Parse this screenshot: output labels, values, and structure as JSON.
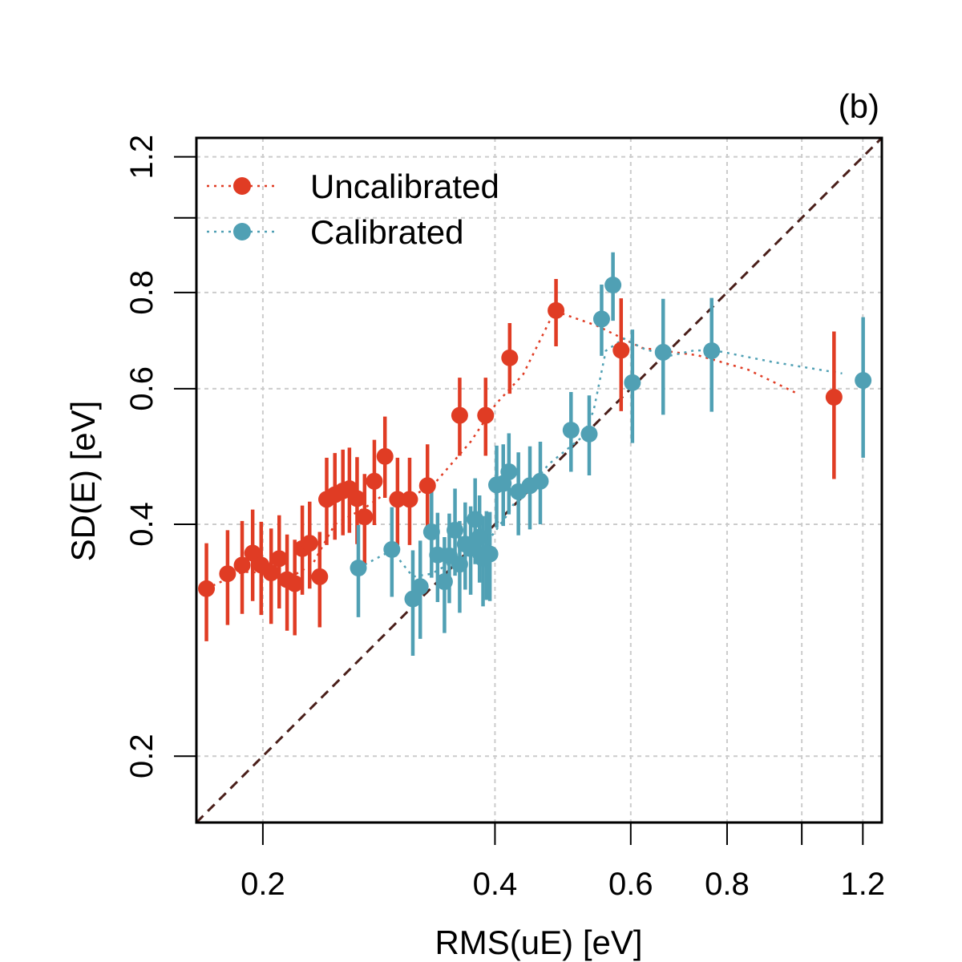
{
  "chart_data": {
    "type": "scatter",
    "panel_label": "(b)",
    "xlabel": "RMS(uE) [eV]",
    "ylabel": "SD(E) [eV]",
    "xscale": "log",
    "yscale": "log",
    "xlim": [
      0.164,
      1.27
    ],
    "ylim": [
      0.164,
      1.27
    ],
    "xticks": [
      0.2,
      0.4,
      0.6,
      0.8,
      1.0,
      1.2
    ],
    "xtick_labels": [
      "0.2",
      "0.4",
      "0.6",
      "0.8",
      "",
      "1.2"
    ],
    "yticks": [
      0.2,
      0.4,
      0.6,
      0.8,
      1.0,
      1.2
    ],
    "ytick_labels": [
      "0.2",
      "0.4",
      "0.6",
      "0.8",
      "",
      "1.2"
    ],
    "grid": true,
    "reference_line": "identity",
    "legend_position": "top-left",
    "legend": [
      {
        "label": "Uncalibrated",
        "color": "#E03C24"
      },
      {
        "label": "Calibrated",
        "color": "#50A0B4"
      }
    ],
    "series": [
      {
        "name": "Uncalibrated",
        "color": "#E03C24",
        "points": [
          {
            "x": 0.169,
            "y": 0.33,
            "lo": 0.282,
            "hi": 0.378
          },
          {
            "x": 0.18,
            "y": 0.345,
            "lo": 0.296,
            "hi": 0.393
          },
          {
            "x": 0.188,
            "y": 0.354,
            "lo": 0.306,
            "hi": 0.404
          },
          {
            "x": 0.194,
            "y": 0.367,
            "lo": 0.318,
            "hi": 0.418
          },
          {
            "x": 0.199,
            "y": 0.354,
            "lo": 0.305,
            "hi": 0.403
          },
          {
            "x": 0.205,
            "y": 0.346,
            "lo": 0.297,
            "hi": 0.395
          },
          {
            "x": 0.21,
            "y": 0.361,
            "lo": 0.311,
            "hi": 0.411
          },
          {
            "x": 0.215,
            "y": 0.339,
            "lo": 0.291,
            "hi": 0.388
          },
          {
            "x": 0.22,
            "y": 0.335,
            "lo": 0.287,
            "hi": 0.382
          },
          {
            "x": 0.225,
            "y": 0.372,
            "lo": 0.324,
            "hi": 0.423
          },
          {
            "x": 0.23,
            "y": 0.378,
            "lo": 0.33,
            "hi": 0.428
          },
          {
            "x": 0.237,
            "y": 0.342,
            "lo": 0.294,
            "hi": 0.391
          },
          {
            "x": 0.242,
            "y": 0.431,
            "lo": 0.376,
            "hi": 0.488
          },
          {
            "x": 0.248,
            "y": 0.437,
            "lo": 0.382,
            "hi": 0.495
          },
          {
            "x": 0.254,
            "y": 0.442,
            "lo": 0.387,
            "hi": 0.5
          },
          {
            "x": 0.259,
            "y": 0.445,
            "lo": 0.39,
            "hi": 0.503
          },
          {
            "x": 0.265,
            "y": 0.432,
            "lo": 0.377,
            "hi": 0.489
          },
          {
            "x": 0.271,
            "y": 0.409,
            "lo": 0.356,
            "hi": 0.465
          },
          {
            "x": 0.279,
            "y": 0.455,
            "lo": 0.399,
            "hi": 0.515
          },
          {
            "x": 0.288,
            "y": 0.49,
            "lo": 0.433,
            "hi": 0.552
          },
          {
            "x": 0.299,
            "y": 0.431,
            "lo": 0.376,
            "hi": 0.488
          },
          {
            "x": 0.31,
            "y": 0.431,
            "lo": 0.376,
            "hi": 0.488
          },
          {
            "x": 0.327,
            "y": 0.449,
            "lo": 0.394,
            "hi": 0.508
          },
          {
            "x": 0.36,
            "y": 0.554,
            "lo": 0.491,
            "hi": 0.62
          },
          {
            "x": 0.389,
            "y": 0.554,
            "lo": 0.491,
            "hi": 0.62
          },
          {
            "x": 0.418,
            "y": 0.658,
            "lo": 0.591,
            "hi": 0.73
          },
          {
            "x": 0.48,
            "y": 0.758,
            "lo": 0.681,
            "hi": 0.833
          },
          {
            "x": 0.583,
            "y": 0.673,
            "lo": 0.561,
            "hi": 0.786
          },
          {
            "x": 1.101,
            "y": 0.585,
            "lo": 0.458,
            "hi": 0.712
          }
        ]
      },
      {
        "name": "Calibrated",
        "color": "#50A0B4",
        "points": [
          {
            "x": 0.266,
            "y": 0.351,
            "lo": 0.303,
            "hi": 0.399
          },
          {
            "x": 0.294,
            "y": 0.371,
            "lo": 0.322,
            "hi": 0.421
          },
          {
            "x": 0.313,
            "y": 0.32,
            "lo": 0.27,
            "hi": 0.37
          },
          {
            "x": 0.32,
            "y": 0.332,
            "lo": 0.284,
            "hi": 0.381
          },
          {
            "x": 0.331,
            "y": 0.391,
            "lo": 0.341,
            "hi": 0.442
          },
          {
            "x": 0.337,
            "y": 0.365,
            "lo": 0.317,
            "hi": 0.414
          },
          {
            "x": 0.344,
            "y": 0.337,
            "lo": 0.289,
            "hi": 0.385
          },
          {
            "x": 0.349,
            "y": 0.364,
            "lo": 0.316,
            "hi": 0.413
          },
          {
            "x": 0.355,
            "y": 0.393,
            "lo": 0.343,
            "hi": 0.445
          },
          {
            "x": 0.36,
            "y": 0.355,
            "lo": 0.307,
            "hi": 0.404
          },
          {
            "x": 0.366,
            "y": 0.377,
            "lo": 0.329,
            "hi": 0.427
          },
          {
            "x": 0.372,
            "y": 0.372,
            "lo": 0.324,
            "hi": 0.422
          },
          {
            "x": 0.377,
            "y": 0.406,
            "lo": 0.355,
            "hi": 0.459
          },
          {
            "x": 0.382,
            "y": 0.385,
            "lo": 0.336,
            "hi": 0.436
          },
          {
            "x": 0.386,
            "y": 0.361,
            "lo": 0.313,
            "hi": 0.41
          },
          {
            "x": 0.39,
            "y": 0.367,
            "lo": 0.319,
            "hi": 0.416
          },
          {
            "x": 0.394,
            "y": 0.366,
            "lo": 0.318,
            "hi": 0.415
          },
          {
            "x": 0.402,
            "y": 0.45,
            "lo": 0.396,
            "hi": 0.506
          },
          {
            "x": 0.41,
            "y": 0.452,
            "lo": 0.398,
            "hi": 0.508
          },
          {
            "x": 0.417,
            "y": 0.468,
            "lo": 0.412,
            "hi": 0.525
          },
          {
            "x": 0.429,
            "y": 0.441,
            "lo": 0.387,
            "hi": 0.496
          },
          {
            "x": 0.444,
            "y": 0.449,
            "lo": 0.394,
            "hi": 0.505
          },
          {
            "x": 0.458,
            "y": 0.455,
            "lo": 0.4,
            "hi": 0.512
          },
          {
            "x": 0.502,
            "y": 0.53,
            "lo": 0.468,
            "hi": 0.594
          },
          {
            "x": 0.53,
            "y": 0.524,
            "lo": 0.463,
            "hi": 0.588
          },
          {
            "x": 0.55,
            "y": 0.739,
            "lo": 0.662,
            "hi": 0.819
          },
          {
            "x": 0.569,
            "y": 0.818,
            "lo": 0.735,
            "hi": 0.902
          },
          {
            "x": 0.603,
            "y": 0.611,
            "lo": 0.51,
            "hi": 0.716
          },
          {
            "x": 0.661,
            "y": 0.669,
            "lo": 0.555,
            "hi": 0.785
          },
          {
            "x": 0.764,
            "y": 0.672,
            "lo": 0.56,
            "hi": 0.787
          },
          {
            "x": 1.201,
            "y": 0.615,
            "lo": 0.488,
            "hi": 0.743
          }
        ]
      }
    ],
    "guide_lines": [
      {
        "series": "Uncalibrated",
        "style": "dotted",
        "x": [
          0.169,
          0.188,
          0.205,
          0.22,
          0.232,
          0.248,
          0.271,
          0.288,
          0.31,
          0.334,
          0.372,
          0.401,
          0.435,
          0.478,
          0.543,
          0.62,
          0.733,
          0.852,
          0.984
        ],
        "y": [
          0.33,
          0.347,
          0.346,
          0.344,
          0.355,
          0.4,
          0.42,
          0.438,
          0.433,
          0.452,
          0.512,
          0.573,
          0.626,
          0.757,
          0.724,
          0.678,
          0.663,
          0.635,
          0.592
        ]
      },
      {
        "series": "Calibrated",
        "style": "dotted",
        "x": [
          0.266,
          0.294,
          0.313,
          0.331,
          0.35,
          0.36,
          0.367,
          0.375,
          0.381,
          0.386,
          0.393,
          0.405,
          0.414,
          0.426,
          0.445,
          0.47,
          0.52,
          0.537,
          0.557,
          0.588,
          0.626,
          0.674,
          0.727,
          0.787,
          0.916,
          1.128
        ],
        "y": [
          0.351,
          0.37,
          0.342,
          0.345,
          0.356,
          0.36,
          0.365,
          0.363,
          0.369,
          0.376,
          0.382,
          0.398,
          0.41,
          0.43,
          0.449,
          0.479,
          0.52,
          0.562,
          0.672,
          0.697,
          0.675,
          0.662,
          0.673,
          0.67,
          0.65,
          0.628
        ]
      }
    ]
  }
}
